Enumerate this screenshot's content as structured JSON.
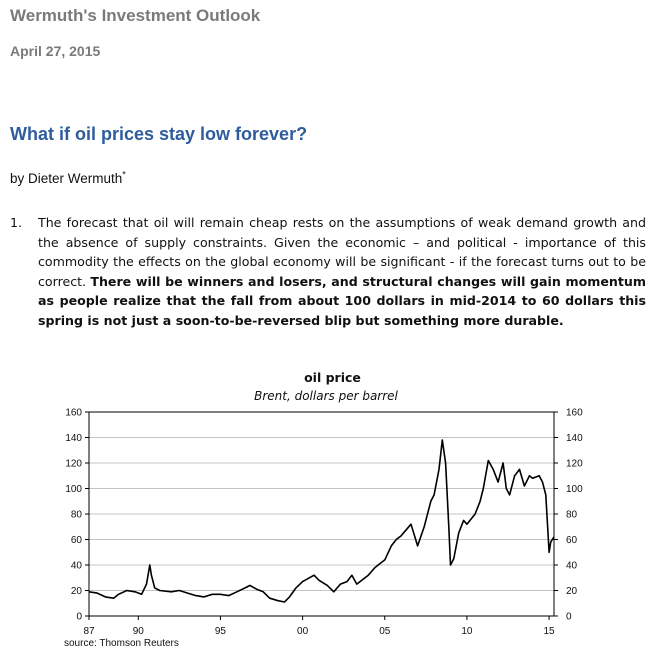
{
  "header": {
    "title": "Wermuth's Investment Outlook",
    "date": "April 27, 2015"
  },
  "article": {
    "title": "What if oil prices stay low forever?",
    "byline": "by Dieter Wermuth",
    "byline_mark": "*",
    "paragraph": {
      "number": "1.",
      "text_regular": "The forecast that oil will remain cheap rests on the assumptions of weak demand growth and the absence of supply constraints. Given the economic – and political - importance of this commodity the effects on the global economy will be significant - if the forecast turns out to be correct.",
      "text_bold": "There will be winners and losers, and structural changes will gain momentum as people realize that the fall from about 100 dollars in mid-2014 to 60 dollars this spring is not just a soon-to-be-reversed blip but something more durable."
    }
  },
  "chart_data": {
    "type": "line",
    "title": "oil price",
    "subtitle": "Brent, dollars per barrel",
    "source": "source: Thomson Reuters",
    "xlim": [
      1987,
      2015.3
    ],
    "ylim": [
      0,
      160
    ],
    "x_ticks": [
      "87",
      "90",
      "95",
      "00",
      "05",
      "10",
      "15"
    ],
    "x_tick_values": [
      1987,
      1990,
      1995,
      2000,
      2005,
      2010,
      2015
    ],
    "y_ticks": [
      "0",
      "20",
      "40",
      "60",
      "80",
      "100",
      "120",
      "140",
      "160"
    ],
    "y_tick_values": [
      0,
      20,
      40,
      60,
      80,
      100,
      120,
      140,
      160
    ],
    "grid": true,
    "line_color": "#000000",
    "series": [
      {
        "x": [
          1987.0,
          1987.5,
          1988.0,
          1988.5,
          1988.8,
          1989.3,
          1989.8,
          1990.2,
          1990.5,
          1990.7,
          1990.8,
          1991.0,
          1991.3,
          1992.0,
          1992.5,
          1993.0,
          1993.5,
          1994.0,
          1994.5,
          1995.0,
          1995.5,
          1996.0,
          1996.5,
          1996.8,
          1997.2,
          1997.6,
          1998.0,
          1998.5,
          1998.9,
          1999.2,
          1999.6,
          2000.0,
          2000.7,
          2001.0,
          2001.5,
          2001.9,
          2002.3,
          2002.7,
          2003.0,
          2003.3,
          2003.7,
          2004.0,
          2004.4,
          2004.8,
          2005.0,
          2005.4,
          2005.7,
          2006.0,
          2006.6,
          2007.0,
          2007.4,
          2007.8,
          2008.0,
          2008.3,
          2008.5,
          2008.7,
          2008.9,
          2009.0,
          2009.2,
          2009.5,
          2009.8,
          2010.0,
          2010.5,
          2010.8,
          2011.0,
          2011.3,
          2011.6,
          2011.9,
          2012.2,
          2012.4,
          2012.6,
          2012.9,
          2013.2,
          2013.5,
          2013.8,
          2014.0,
          2014.4,
          2014.6,
          2014.8,
          2015.0,
          2015.1,
          2015.3
        ],
        "y": [
          19,
          18,
          15,
          14,
          17,
          20,
          19,
          17,
          25,
          40,
          32,
          22,
          20,
          19,
          20,
          18,
          16,
          15,
          17,
          17,
          16,
          19,
          22,
          24,
          21,
          19,
          14,
          12,
          11,
          15,
          22,
          27,
          32,
          28,
          24,
          19,
          25,
          27,
          32,
          25,
          29,
          32,
          38,
          42,
          44,
          55,
          60,
          63,
          72,
          55,
          70,
          90,
          95,
          115,
          138,
          120,
          70,
          40,
          45,
          65,
          75,
          72,
          80,
          90,
          100,
          122,
          115,
          105,
          120,
          100,
          95,
          110,
          115,
          102,
          110,
          108,
          110,
          105,
          95,
          50,
          58,
          62
        ]
      }
    ]
  }
}
